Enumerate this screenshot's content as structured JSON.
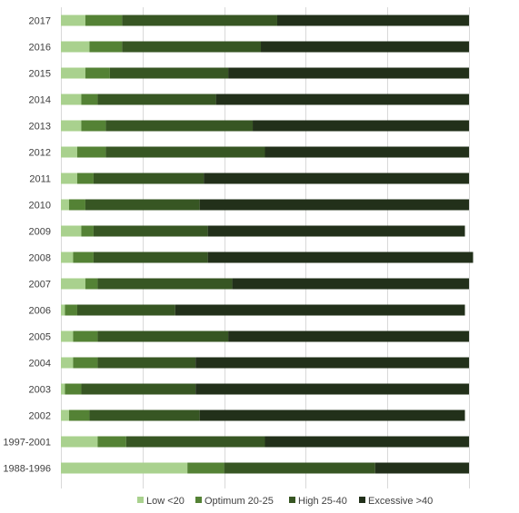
{
  "chart_data": {
    "type": "bar",
    "orientation": "horizontal",
    "stacked": true,
    "categories": [
      "2017",
      "2016",
      "2015",
      "2014",
      "2013",
      "2012",
      "2011",
      "2010",
      "2009",
      "2008",
      "2007",
      "2006",
      "2005",
      "2004",
      "2003",
      "2002",
      "1997-2001",
      "1988-1996"
    ],
    "series": [
      {
        "name": "Low <20",
        "color": "#a9d18e",
        "values": [
          6,
          7,
          6,
          5,
          5,
          4,
          4,
          2,
          5,
          3,
          6,
          1,
          3,
          3,
          1,
          2,
          9,
          31
        ]
      },
      {
        "name": "Optimum 20-25",
        "color": "#548235",
        "values": [
          9,
          8,
          6,
          4,
          6,
          7,
          4,
          4,
          3,
          5,
          3,
          3,
          6,
          6,
          4,
          5,
          7,
          9
        ]
      },
      {
        "name": "High 25-40",
        "color": "#375623",
        "values": [
          38,
          34,
          29,
          29,
          36,
          39,
          27,
          28,
          28,
          28,
          33,
          24,
          32,
          24,
          28,
          27,
          34,
          37
        ]
      },
      {
        "name": "Excessive >40",
        "color": "#22301a",
        "values": [
          47,
          51,
          59,
          62,
          53,
          50,
          65,
          66,
          63,
          65,
          58,
          71,
          59,
          67,
          67,
          65,
          50,
          23
        ]
      }
    ],
    "xlim": [
      0,
      100
    ],
    "grid": "vertical",
    "legend_position": "bottom"
  }
}
